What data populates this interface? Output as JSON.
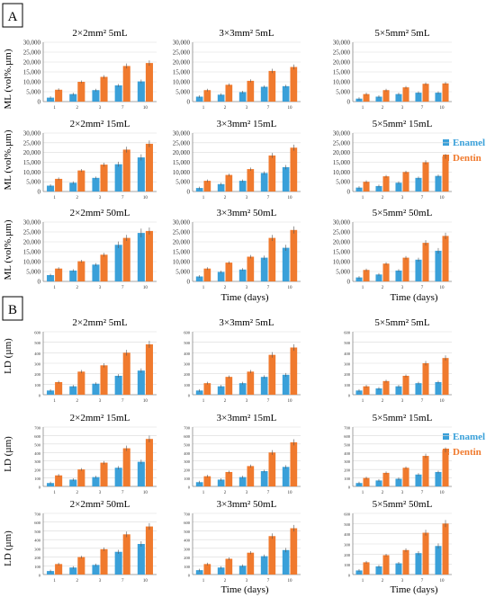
{
  "colors": {
    "enamel": "#3aa0d9",
    "dentin": "#f07a2e",
    "axis": "#888888",
    "grid": "#d9d9d9"
  },
  "panels": [
    {
      "label": "A",
      "ylabel": "ML (vol%.µm)",
      "xlabel": "Time (days)",
      "legend": {
        "enamel": "Enamel",
        "dentin": "Dentin",
        "placement": "right-middle"
      },
      "ylim": [
        0,
        30000
      ],
      "yticks": [
        "0",
        "5,000",
        "10,000",
        "15,000",
        "20,000",
        "25,000",
        "30,000"
      ],
      "categories": [
        "1",
        "2",
        "3",
        "7",
        "10"
      ]
    },
    {
      "label": "B",
      "ylabel": "LD (µm)",
      "xlabel": "Time (days)",
      "legend": {
        "enamel": "Enamel",
        "dentin": "Dentin",
        "placement": "right-middle"
      },
      "categories": [
        "1",
        "2",
        "3",
        "7",
        "10"
      ]
    }
  ],
  "chart_data": [
    {
      "type": "bar",
      "panel": "A",
      "title": "2×2mm² 5mL",
      "categories": [
        "1",
        "2",
        "3",
        "7",
        "10"
      ],
      "ylim": [
        0,
        30000
      ],
      "yticks": [
        "0",
        "5,000",
        "10,000",
        "15,000",
        "20,000",
        "25,000",
        "30,000"
      ],
      "series": [
        {
          "name": "Enamel",
          "values": [
            2000,
            3800,
            5800,
            8200,
            10200
          ]
        },
        {
          "name": "Dentin",
          "values": [
            6000,
            10000,
            12500,
            18000,
            19500
          ]
        }
      ]
    },
    {
      "type": "bar",
      "panel": "A",
      "title": "3×3mm² 5mL",
      "categories": [
        "1",
        "2",
        "3",
        "7",
        "10"
      ],
      "ylim": [
        0,
        30000
      ],
      "yticks": [
        "0",
        "5,000",
        "10,000",
        "15,000",
        "20,000",
        "25,000",
        "30,000"
      ],
      "series": [
        {
          "name": "Enamel",
          "values": [
            2500,
            3500,
            4800,
            7500,
            7800
          ]
        },
        {
          "name": "Dentin",
          "values": [
            5800,
            8500,
            10500,
            15500,
            17500
          ]
        }
      ]
    },
    {
      "type": "bar",
      "panel": "A",
      "title": "5×5mm² 5mL",
      "categories": [
        "1",
        "2",
        "3",
        "7",
        "10"
      ],
      "ylim": [
        0,
        30000
      ],
      "yticks": [
        "0",
        "5,000",
        "10,000",
        "15,000",
        "20,000",
        "25,000",
        "30,000"
      ],
      "series": [
        {
          "name": "Enamel",
          "values": [
            1500,
            2500,
            3800,
            4500,
            4500
          ]
        },
        {
          "name": "Dentin",
          "values": [
            3800,
            5800,
            7200,
            9000,
            9200
          ]
        }
      ]
    },
    {
      "type": "bar",
      "panel": "A",
      "title": "2×2mm² 15mL",
      "categories": [
        "1",
        "2",
        "3",
        "7",
        "10"
      ],
      "ylim": [
        0,
        30000
      ],
      "yticks": [
        "0",
        "5,000",
        "10,000",
        "15,000",
        "20,000",
        "25,000",
        "30,000"
      ],
      "series": [
        {
          "name": "Enamel",
          "values": [
            3000,
            4500,
            7000,
            14000,
            17500
          ]
        },
        {
          "name": "Dentin",
          "values": [
            6500,
            10800,
            13800,
            21500,
            24500
          ]
        }
      ]
    },
    {
      "type": "bar",
      "panel": "A",
      "title": "3×3mm² 15mL",
      "categories": [
        "1",
        "2",
        "3",
        "7",
        "10"
      ],
      "ylim": [
        0,
        30000
      ],
      "yticks": [
        "0",
        "5,000",
        "10,000",
        "15,000",
        "20,000",
        "25,000",
        "30,000"
      ],
      "series": [
        {
          "name": "Enamel",
          "values": [
            1800,
            3800,
            5500,
            9500,
            12500
          ]
        },
        {
          "name": "Dentin",
          "values": [
            5500,
            8500,
            11500,
            18500,
            22500
          ]
        }
      ]
    },
    {
      "type": "bar",
      "panel": "A",
      "title": "5×5mm² 15mL",
      "categories": [
        "1",
        "2",
        "3",
        "7",
        "10"
      ],
      "ylim": [
        0,
        30000
      ],
      "yticks": [
        "0",
        "5,000",
        "10,000",
        "15,000",
        "20,000",
        "25,000",
        "30,000"
      ],
      "series": [
        {
          "name": "Enamel",
          "values": [
            2000,
            2800,
            4500,
            7000,
            8000
          ]
        },
        {
          "name": "Dentin",
          "values": [
            5000,
            7800,
            10000,
            15000,
            18000
          ]
        }
      ]
    },
    {
      "type": "bar",
      "panel": "A",
      "title": "2×2mm² 50mL",
      "categories": [
        "1",
        "2",
        "3",
        "7",
        "10"
      ],
      "ylim": [
        0,
        30000
      ],
      "yticks": [
        "0",
        "5,000",
        "10,000",
        "15,000",
        "20,000",
        "25,000",
        "30,000"
      ],
      "series": [
        {
          "name": "Enamel",
          "values": [
            3200,
            5500,
            8500,
            18500,
            24500
          ]
        },
        {
          "name": "Dentin",
          "values": [
            6500,
            10200,
            13500,
            22000,
            25500
          ]
        }
      ]
    },
    {
      "type": "bar",
      "panel": "A",
      "title": "3×3mm² 50mL",
      "categories": [
        "1",
        "2",
        "3",
        "7",
        "10"
      ],
      "ylim": [
        0,
        30000
      ],
      "yticks": [
        "0",
        "5,000",
        "10,000",
        "15,000",
        "20,000",
        "25,000",
        "30,000"
      ],
      "series": [
        {
          "name": "Enamel",
          "values": [
            2500,
            4800,
            6000,
            12000,
            17000
          ]
        },
        {
          "name": "Dentin",
          "values": [
            6500,
            9500,
            12500,
            22000,
            26000
          ]
        }
      ]
    },
    {
      "type": "bar",
      "panel": "A",
      "title": "5×5mm² 50mL",
      "categories": [
        "1",
        "2",
        "3",
        "7",
        "10"
      ],
      "ylim": [
        0,
        30000
      ],
      "yticks": [
        "0",
        "5,000",
        "10,000",
        "15,000",
        "20,000",
        "25,000",
        "30,000"
      ],
      "series": [
        {
          "name": "Enamel",
          "values": [
            2000,
            3500,
            5500,
            11000,
            15500
          ]
        },
        {
          "name": "Dentin",
          "values": [
            5800,
            9000,
            12000,
            19500,
            23000
          ]
        }
      ]
    },
    {
      "type": "bar",
      "panel": "B",
      "title": "2×2mm² 5mL",
      "categories": [
        "1",
        "2",
        "3",
        "7",
        "10"
      ],
      "ylim": [
        0,
        600
      ],
      "yticks": [
        "0",
        "100",
        "200",
        "300",
        "400",
        "500",
        "600"
      ],
      "series": [
        {
          "name": "Enamel",
          "values": [
            40,
            80,
            105,
            180,
            230
          ]
        },
        {
          "name": "Dentin",
          "values": [
            120,
            220,
            280,
            400,
            480
          ]
        }
      ]
    },
    {
      "type": "bar",
      "panel": "B",
      "title": "3×3mm² 5mL",
      "categories": [
        "1",
        "2",
        "3",
        "7",
        "10"
      ],
      "ylim": [
        0,
        600
      ],
      "yticks": [
        "0",
        "100",
        "200",
        "300",
        "400",
        "500",
        "600"
      ],
      "series": [
        {
          "name": "Enamel",
          "values": [
            40,
            80,
            110,
            170,
            190
          ]
        },
        {
          "name": "Dentin",
          "values": [
            110,
            170,
            220,
            380,
            450
          ]
        }
      ]
    },
    {
      "type": "bar",
      "panel": "B",
      "title": "5×5mm² 5mL",
      "categories": [
        "1",
        "2",
        "3",
        "7",
        "10"
      ],
      "ylim": [
        0,
        600
      ],
      "yticks": [
        "0",
        "100",
        "200",
        "300",
        "400",
        "500",
        "600"
      ],
      "series": [
        {
          "name": "Enamel",
          "values": [
            40,
            60,
            80,
            110,
            120
          ]
        },
        {
          "name": "Dentin",
          "values": [
            80,
            130,
            180,
            300,
            350
          ]
        }
      ]
    },
    {
      "type": "bar",
      "panel": "B",
      "title": "2×2mm² 15mL",
      "categories": [
        "1",
        "2",
        "3",
        "7",
        "10"
      ],
      "ylim": [
        0,
        700
      ],
      "yticks": [
        "0",
        "100",
        "200",
        "300",
        "400",
        "500",
        "600",
        "700"
      ],
      "series": [
        {
          "name": "Enamel",
          "values": [
            40,
            80,
            110,
            220,
            290
          ]
        },
        {
          "name": "Dentin",
          "values": [
            130,
            200,
            280,
            450,
            560
          ]
        }
      ]
    },
    {
      "type": "bar",
      "panel": "B",
      "title": "3×3mm² 15mL",
      "categories": [
        "1",
        "2",
        "3",
        "7",
        "10"
      ],
      "ylim": [
        0,
        700
      ],
      "yticks": [
        "0",
        "100",
        "200",
        "300",
        "400",
        "500",
        "600",
        "700"
      ],
      "series": [
        {
          "name": "Enamel",
          "values": [
            50,
            80,
            110,
            180,
            230
          ]
        },
        {
          "name": "Dentin",
          "values": [
            120,
            170,
            240,
            400,
            520
          ]
        }
      ]
    },
    {
      "type": "bar",
      "panel": "B",
      "title": "5×5mm² 15mL",
      "categories": [
        "1",
        "2",
        "3",
        "7",
        "10"
      ],
      "ylim": [
        0,
        700
      ],
      "yticks": [
        "0",
        "100",
        "200",
        "300",
        "400",
        "500",
        "600",
        "700"
      ],
      "series": [
        {
          "name": "Enamel",
          "values": [
            40,
            70,
            90,
            140,
            170
          ]
        },
        {
          "name": "Dentin",
          "values": [
            100,
            160,
            220,
            360,
            430
          ]
        }
      ]
    },
    {
      "type": "bar",
      "panel": "B",
      "title": "2×2mm² 50mL",
      "categories": [
        "1",
        "2",
        "3",
        "7",
        "10"
      ],
      "ylim": [
        0,
        700
      ],
      "yticks": [
        "0",
        "100",
        "200",
        "300",
        "400",
        "500",
        "600",
        "700"
      ],
      "series": [
        {
          "name": "Enamel",
          "values": [
            40,
            80,
            110,
            260,
            350
          ]
        },
        {
          "name": "Dentin",
          "values": [
            120,
            200,
            290,
            460,
            550
          ]
        }
      ]
    },
    {
      "type": "bar",
      "panel": "B",
      "title": "3×3mm² 50mL",
      "categories": [
        "1",
        "2",
        "3",
        "7",
        "10"
      ],
      "ylim": [
        0,
        700
      ],
      "yticks": [
        "0",
        "100",
        "200",
        "300",
        "400",
        "500",
        "600",
        "700"
      ],
      "series": [
        {
          "name": "Enamel",
          "values": [
            50,
            80,
            100,
            210,
            280
          ]
        },
        {
          "name": "Dentin",
          "values": [
            120,
            180,
            250,
            440,
            530
          ]
        }
      ]
    },
    {
      "type": "bar",
      "panel": "B",
      "title": "5×5mm² 50mL",
      "categories": [
        "1",
        "2",
        "3",
        "7",
        "10"
      ],
      "ylim": [
        0,
        600
      ],
      "yticks": [
        "0",
        "100",
        "200",
        "300",
        "400",
        "500",
        "600"
      ],
      "series": [
        {
          "name": "Enamel",
          "values": [
            40,
            80,
            110,
            210,
            280
          ]
        },
        {
          "name": "Dentin",
          "values": [
            120,
            190,
            240,
            410,
            500
          ]
        }
      ]
    }
  ]
}
